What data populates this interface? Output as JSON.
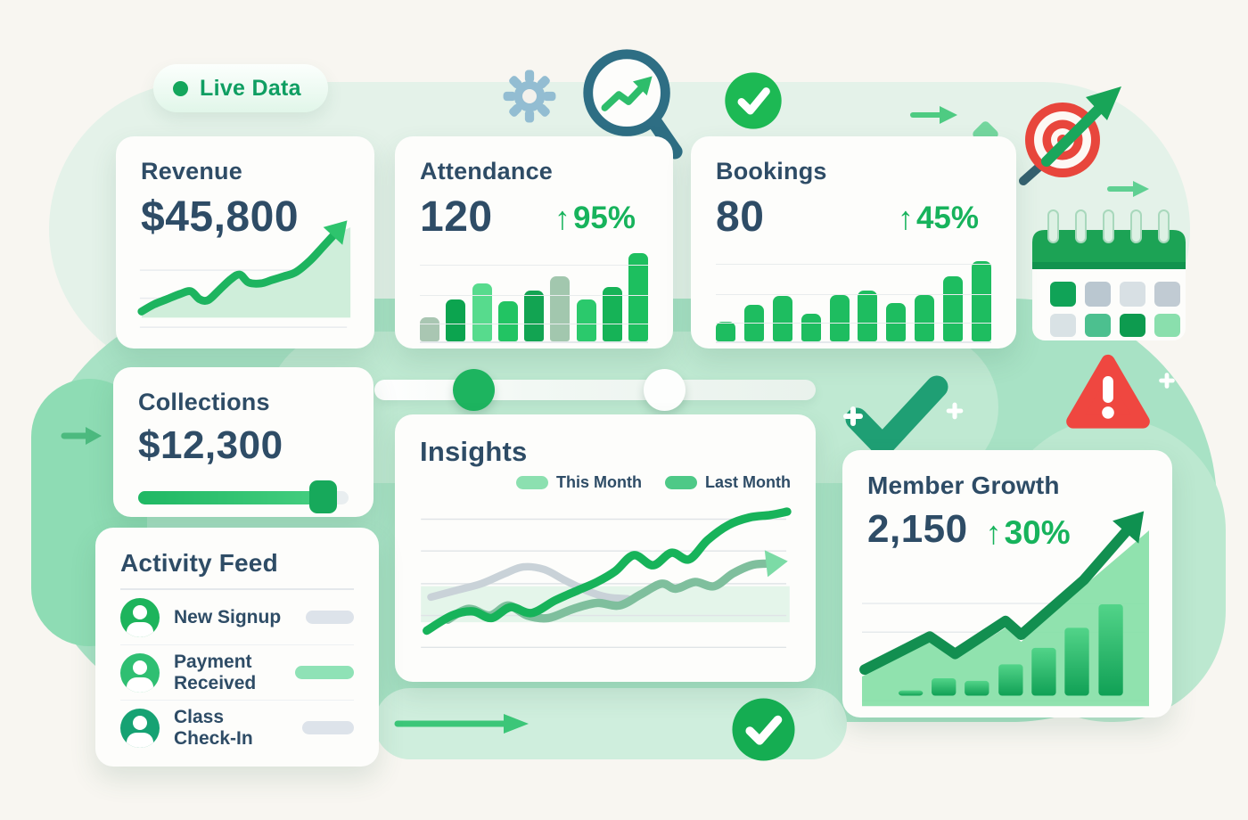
{
  "colors": {
    "navy_text": "#2e4c66",
    "green_accent": "#17b35c",
    "mint_band": "#a8e2c5",
    "cream_bg": "#f8f6f1",
    "card_bg": "#fdfdfb",
    "alert_red": "#ef4740"
  },
  "icons": {
    "up_arrow": "↑"
  },
  "badge": {
    "label": "Live Data"
  },
  "cards": {
    "revenue": {
      "title": "Revenue",
      "value": "$45,800"
    },
    "attendance": {
      "title": "Attendance",
      "value": "120",
      "delta": "95%"
    },
    "bookings": {
      "title": "Bookings",
      "value": "80",
      "delta": "45%"
    },
    "collections": {
      "title": "Collections",
      "value": "$12,300",
      "progress_pct": 88
    },
    "insights": {
      "title": "Insights",
      "legend": [
        {
          "label": "This Month",
          "color": "#8ce0b0"
        },
        {
          "label": "Last Month",
          "color": "#4ec987"
        }
      ]
    },
    "member_growth": {
      "title": "Member Growth",
      "value": "2,150",
      "delta": "30%"
    },
    "activity_feed": {
      "title": "Activity Feed",
      "items": [
        {
          "label": "New Signup",
          "avatar_color": "#1db45c",
          "pill_color": "#dde3ea",
          "pill_width": 54
        },
        {
          "label": "Payment Received",
          "avatar_color": "#2fbf72",
          "pill_color": "#8fe2b6",
          "pill_width": 66
        },
        {
          "label": "Class Check-In",
          "avatar_color": "#16a273",
          "pill_color": "#dde3ea",
          "pill_width": 58
        }
      ]
    }
  },
  "slider": {
    "handles": [
      "green",
      "white"
    ]
  },
  "chart_data": [
    {
      "id": "revenue-line",
      "type": "area",
      "title": "Revenue trend (unlabeled sparkline, rising)",
      "line_color": "#1db45f",
      "arrow_color": "#2ec46d",
      "fill_color": "#cfeeda",
      "gridlines": [
        53,
        85,
        118
      ],
      "baseline": 107,
      "right_edge": 240,
      "points": [
        [
          2,
          100
        ],
        [
          16,
          92
        ],
        [
          31,
          86
        ],
        [
          46,
          80
        ],
        [
          58,
          77
        ],
        [
          68,
          86
        ],
        [
          78,
          87
        ],
        [
          91,
          75
        ],
        [
          104,
          63
        ],
        [
          114,
          58
        ],
        [
          124,
          67
        ],
        [
          138,
          68
        ],
        [
          151,
          64
        ],
        [
          164,
          60
        ],
        [
          178,
          55
        ],
        [
          194,
          42
        ],
        [
          208,
          27
        ],
        [
          220,
          14
        ]
      ]
    },
    {
      "id": "attendance-bars",
      "type": "bar",
      "title": "Attendance mini bar chart (unlabeled, relative heights %)",
      "values": [
        26,
        46,
        64,
        44,
        56,
        72,
        46,
        60,
        97
      ],
      "colors": [
        "#a9c6b2",
        "#0ca44f",
        "#57db8d",
        "#22c463",
        "#12a452",
        "#a2c7ae",
        "#2bc96c",
        "#16b357",
        "#1dbf5f"
      ]
    },
    {
      "id": "bookings-bars",
      "type": "bar",
      "title": "Bookings mini bar chart (unlabeled, relative heights %)",
      "values": [
        22,
        40,
        50,
        30,
        51,
        56,
        42,
        51,
        72,
        88
      ],
      "color": "#1ebd60"
    },
    {
      "id": "insights-lines",
      "type": "line",
      "title": "Insights comparison lines (unlabeled axes)",
      "band": {
        "y": 105,
        "height": 43,
        "color": "#e4f5ea"
      },
      "gridlines": [
        25,
        63,
        102,
        140,
        178
      ],
      "series": [
        {
          "name": "Baseline (gray)",
          "color": "#c9d2d8",
          "width": 9,
          "points": [
            [
              12,
              118
            ],
            [
              42,
              110
            ],
            [
              72,
              102
            ],
            [
              100,
              90
            ],
            [
              122,
              82
            ],
            [
              147,
              85
            ],
            [
              172,
              98
            ],
            [
              197,
              110
            ],
            [
              222,
              118
            ],
            [
              247,
              120
            ]
          ]
        },
        {
          "name": "Last Month",
          "color": "#7fbf9d",
          "width": 10,
          "arrow_color": "#7cdba6",
          "points": [
            [
              32,
              145
            ],
            [
              57,
              132
            ],
            [
              82,
              140
            ],
            [
              104,
              128
            ],
            [
              127,
              140
            ],
            [
              152,
              143
            ],
            [
              182,
              132
            ],
            [
              210,
              125
            ],
            [
              237,
              128
            ],
            [
              262,
              115
            ],
            [
              287,
              102
            ],
            [
              304,
              108
            ],
            [
              327,
              100
            ],
            [
              350,
              105
            ],
            [
              372,
              90
            ],
            [
              394,
              80
            ],
            [
              412,
              78
            ]
          ]
        },
        {
          "name": "This Month",
          "color": "#17b35a",
          "width": 10,
          "points": [
            [
              7,
              158
            ],
            [
              37,
              140
            ],
            [
              62,
              135
            ],
            [
              84,
              143
            ],
            [
              107,
              130
            ],
            [
              132,
              137
            ],
            [
              160,
              122
            ],
            [
              187,
              110
            ],
            [
              210,
              100
            ],
            [
              232,
              87
            ],
            [
              254,
              68
            ],
            [
              277,
              80
            ],
            [
              299,
              65
            ],
            [
              320,
              73
            ],
            [
              342,
              50
            ],
            [
              367,
              32
            ],
            [
              392,
              23
            ],
            [
              417,
              20
            ],
            [
              437,
              16
            ]
          ]
        }
      ]
    },
    {
      "id": "member-growth",
      "type": "combo",
      "title": "Member growth mountain + bars + arrow (unlabeled)",
      "mountain_color": "#87dfa7",
      "line_color": "#128f50",
      "arrow_color": "#0f9150",
      "bar_gradient": [
        "#52d489",
        "#10a055"
      ],
      "gridlines": [
        112,
        145
      ],
      "baseline": 218,
      "mountain": [
        [
          0,
          196
        ],
        [
          78,
          156
        ],
        [
          107,
          176
        ],
        [
          165,
          140
        ],
        [
          183,
          156
        ],
        [
          255,
          92
        ],
        [
          330,
          28
        ],
        [
          330,
          230
        ],
        [
          0,
          230
        ]
      ],
      "line": [
        [
          3,
          188
        ],
        [
          78,
          150
        ],
        [
          107,
          170
        ],
        [
          165,
          132
        ],
        [
          183,
          148
        ],
        [
          255,
          85
        ],
        [
          303,
          30
        ]
      ],
      "bars": {
        "x": [
          42,
          80,
          118,
          157,
          195,
          233,
          272
        ],
        "width": 28,
        "heights": [
          6,
          20,
          17,
          36,
          55,
          78,
          105
        ]
      }
    }
  ]
}
